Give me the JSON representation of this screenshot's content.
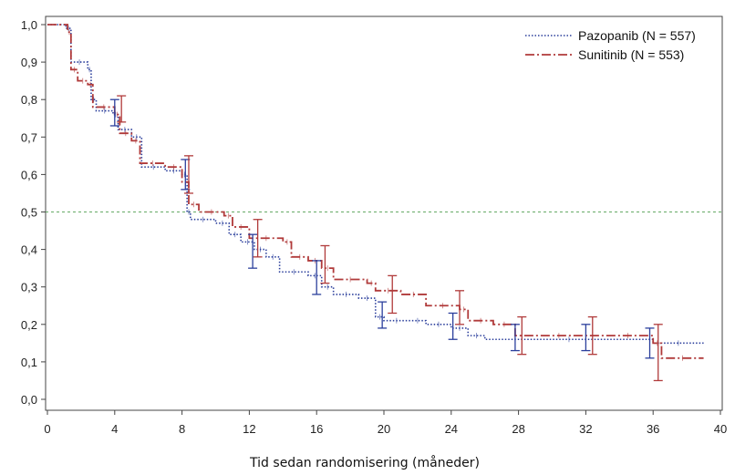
{
  "chart_data": {
    "type": "line",
    "title": "",
    "xlabel": "Tid sedan randomisering (måneder)",
    "ylabel": "",
    "xlim": [
      0,
      40
    ],
    "ylim": [
      0,
      1
    ],
    "x_ticks": [
      "0",
      "4",
      "8",
      "12",
      "16",
      "20",
      "24",
      "28",
      "32",
      "36",
      "40"
    ],
    "y_ticks": [
      "0,0",
      "0,1",
      "0,2",
      "0,3",
      "0,4",
      "0,5",
      "0,6",
      "0,7",
      "0,8",
      "0,9",
      "1,0"
    ],
    "reference_line": {
      "y": 0.5,
      "color": "#66aa66"
    },
    "legend_position": "top-right",
    "series": [
      {
        "name": "Pazopanib (N = 557)",
        "color": "#2b3f9c",
        "style": "dotted",
        "points": [
          [
            0,
            1.0
          ],
          [
            1.1,
            0.99
          ],
          [
            1.4,
            0.9
          ],
          [
            2.4,
            0.88
          ],
          [
            2.6,
            0.8
          ],
          [
            2.9,
            0.77
          ],
          [
            3.9,
            0.76
          ],
          [
            4.2,
            0.72
          ],
          [
            5.0,
            0.7
          ],
          [
            5.6,
            0.62
          ],
          [
            7.0,
            0.61
          ],
          [
            8.0,
            0.6
          ],
          [
            8.3,
            0.5
          ],
          [
            8.5,
            0.48
          ],
          [
            10.0,
            0.47
          ],
          [
            10.8,
            0.44
          ],
          [
            11.5,
            0.42
          ],
          [
            12.3,
            0.4
          ],
          [
            13.0,
            0.38
          ],
          [
            13.8,
            0.34
          ],
          [
            15.5,
            0.33
          ],
          [
            16.3,
            0.3
          ],
          [
            17.0,
            0.28
          ],
          [
            18.5,
            0.27
          ],
          [
            19.5,
            0.22
          ],
          [
            20.0,
            0.21
          ],
          [
            21.5,
            0.21
          ],
          [
            22.5,
            0.2
          ],
          [
            24.0,
            0.19
          ],
          [
            25.0,
            0.17
          ],
          [
            26.0,
            0.16
          ],
          [
            36.0,
            0.15
          ],
          [
            39.0,
            0.15
          ]
        ],
        "error_bars": [
          {
            "x": 4.0,
            "low": 0.73,
            "high": 0.8
          },
          {
            "x": 8.2,
            "low": 0.56,
            "high": 0.64
          },
          {
            "x": 12.2,
            "low": 0.35,
            "high": 0.44
          },
          {
            "x": 16.0,
            "low": 0.28,
            "high": 0.37
          },
          {
            "x": 19.9,
            "low": 0.19,
            "high": 0.26
          },
          {
            "x": 24.1,
            "low": 0.16,
            "high": 0.23
          },
          {
            "x": 27.8,
            "low": 0.13,
            "high": 0.2
          },
          {
            "x": 32.0,
            "low": 0.13,
            "high": 0.2
          },
          {
            "x": 35.8,
            "low": 0.11,
            "high": 0.19
          }
        ]
      },
      {
        "name": "Sunitinib (N = 553)",
        "color": "#b03a3a",
        "style": "dashdot",
        "points": [
          [
            0,
            1.0
          ],
          [
            1.2,
            0.98
          ],
          [
            1.4,
            0.88
          ],
          [
            1.8,
            0.85
          ],
          [
            2.4,
            0.84
          ],
          [
            2.7,
            0.78
          ],
          [
            4.0,
            0.76
          ],
          [
            4.3,
            0.71
          ],
          [
            5.0,
            0.69
          ],
          [
            5.5,
            0.63
          ],
          [
            7.0,
            0.62
          ],
          [
            8.0,
            0.58
          ],
          [
            8.4,
            0.52
          ],
          [
            9.0,
            0.5
          ],
          [
            10.5,
            0.49
          ],
          [
            11.0,
            0.46
          ],
          [
            12.0,
            0.43
          ],
          [
            14.0,
            0.42
          ],
          [
            14.5,
            0.38
          ],
          [
            15.5,
            0.37
          ],
          [
            16.3,
            0.35
          ],
          [
            17.0,
            0.32
          ],
          [
            19.0,
            0.31
          ],
          [
            19.5,
            0.29
          ],
          [
            21.0,
            0.28
          ],
          [
            22.5,
            0.25
          ],
          [
            24.5,
            0.24
          ],
          [
            25.0,
            0.21
          ],
          [
            26.5,
            0.2
          ],
          [
            27.8,
            0.17
          ],
          [
            33.0,
            0.17
          ],
          [
            36.0,
            0.15
          ],
          [
            36.5,
            0.11
          ],
          [
            39.0,
            0.11
          ]
        ],
        "error_bars": [
          {
            "x": 4.4,
            "low": 0.74,
            "high": 0.81
          },
          {
            "x": 8.4,
            "low": 0.55,
            "high": 0.65
          },
          {
            "x": 12.5,
            "low": 0.38,
            "high": 0.48
          },
          {
            "x": 16.5,
            "low": 0.31,
            "high": 0.41
          },
          {
            "x": 20.5,
            "low": 0.23,
            "high": 0.33
          },
          {
            "x": 24.5,
            "low": 0.2,
            "high": 0.29
          },
          {
            "x": 28.2,
            "low": 0.12,
            "high": 0.22
          },
          {
            "x": 32.4,
            "low": 0.12,
            "high": 0.22
          },
          {
            "x": 36.3,
            "low": 0.05,
            "high": 0.2
          }
        ]
      }
    ]
  }
}
